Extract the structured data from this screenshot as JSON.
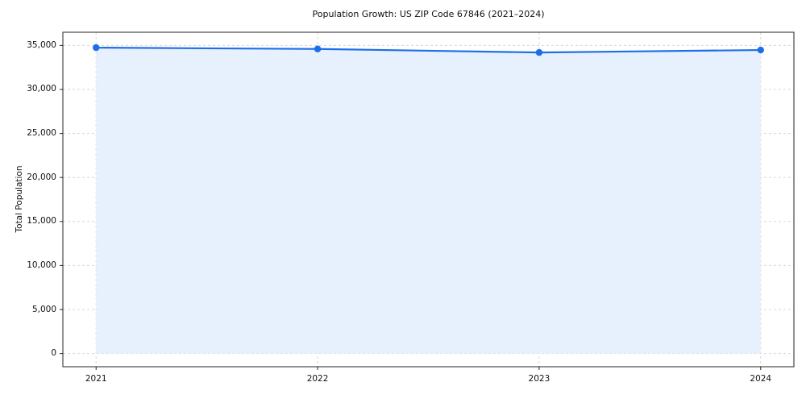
{
  "title": "Population Growth: US ZIP Code 67846 (2021–2024)",
  "chart_data": {
    "type": "line",
    "title": "Population Growth: US ZIP Code 67846 (2021–2024)",
    "xlabel": "",
    "ylabel": "Total Population",
    "x": [
      2021,
      2022,
      2023,
      2024
    ],
    "series": [
      {
        "name": "Total Population",
        "values": [
          34750,
          34600,
          34200,
          34480
        ]
      }
    ],
    "ylim": [
      -1500,
      36500
    ],
    "yticks": [
      0,
      5000,
      10000,
      15000,
      20000,
      25000,
      30000,
      35000
    ],
    "grid": true,
    "grid_style": "dashed",
    "legend_position": "none",
    "line_color": "#1d6fe8",
    "marker_color": "#1d6fe8",
    "fill_color": "#e7f0fd",
    "area_fill": true,
    "marker": "circle"
  }
}
